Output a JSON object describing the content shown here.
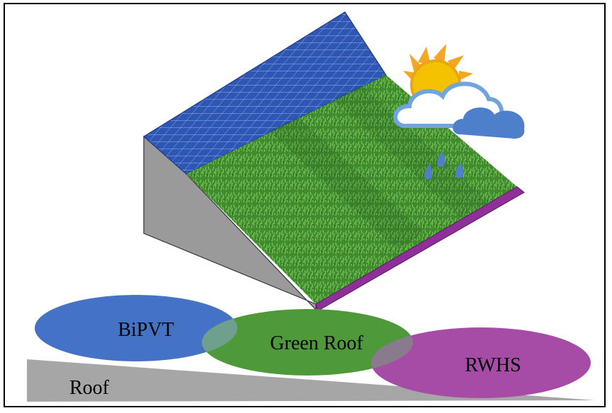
{
  "labels": {
    "bipvt": "BiPVT",
    "green_roof": "Green Roof",
    "rwhs": "RWHS",
    "roof": "Roof"
  },
  "colors": {
    "bipvt": "#4472C4",
    "green_roof": "#4E9A3A",
    "rwhs": "#A64CA6",
    "roof": "#A6A6A6",
    "solar_panel": "#2F58B8",
    "grass": "#3E8A2E",
    "gutter": "#8E2F9A",
    "wall": "#9A9A9A"
  },
  "icons": [
    "weather-sun-cloud-rain-icon"
  ]
}
